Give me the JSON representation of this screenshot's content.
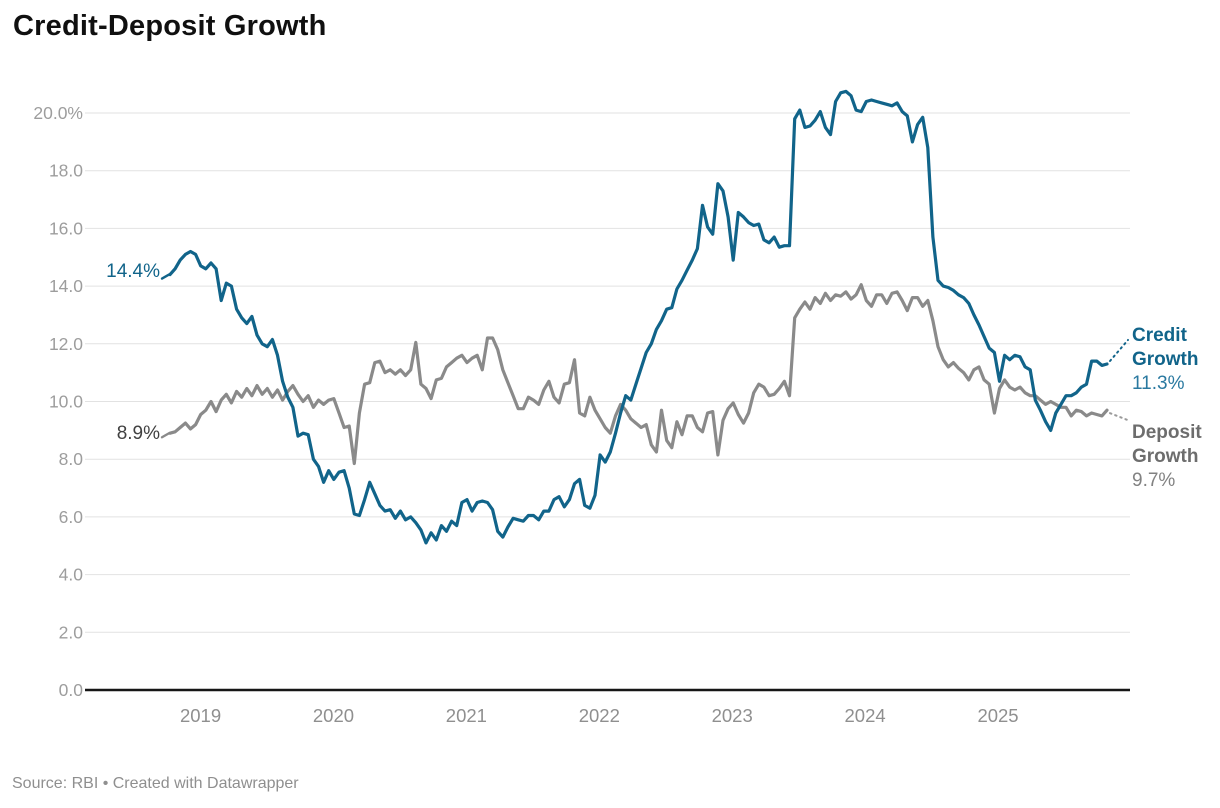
{
  "header": {
    "title": "Credit-Deposit Growth"
  },
  "footer": {
    "source_note": "Source: RBI • Created with Datawrapper"
  },
  "chart_data": {
    "type": "line",
    "title": "Credit-Deposit Growth",
    "xlabel": "",
    "ylabel": "",
    "grid": "horizontal",
    "legend_position": "line-end-labels",
    "x_axis": {
      "domain_start": 2018.77,
      "domain_end": 2025.82,
      "tick_labels": [
        "2019",
        "2020",
        "2021",
        "2022",
        "2023",
        "2024",
        "2025"
      ],
      "tick_values": [
        2019,
        2020,
        2021,
        2022,
        2023,
        2024,
        2025
      ]
    },
    "y_axis": {
      "min": 0,
      "max": 20,
      "tick_step": 2,
      "ticks": [
        {
          "v": 20,
          "label": "20.0%"
        },
        {
          "v": 18,
          "label": "18.0"
        },
        {
          "v": 16,
          "label": "16.0"
        },
        {
          "v": 14,
          "label": "14.0"
        },
        {
          "v": 12,
          "label": "12.0"
        },
        {
          "v": 10,
          "label": "10.0"
        },
        {
          "v": 8,
          "label": "8.0"
        },
        {
          "v": 6,
          "label": "6.0"
        },
        {
          "v": 4,
          "label": "4.0"
        },
        {
          "v": 2,
          "label": "2.0"
        },
        {
          "v": 0,
          "label": "0.0"
        }
      ]
    },
    "series": [
      {
        "name": "Credit Growth",
        "color": "#11648a",
        "start_label": "14.4%",
        "end_value_label": "11.3%",
        "frequency": "fortnightly",
        "values": [
          14.4,
          14.6,
          14.9,
          15.1,
          15.2,
          15.1,
          14.7,
          14.6,
          14.8,
          14.6,
          13.5,
          14.1,
          14.0,
          13.2,
          12.9,
          12.7,
          12.95,
          12.3,
          12.0,
          11.9,
          12.15,
          11.6,
          10.7,
          10.15,
          9.8,
          8.8,
          8.9,
          8.85,
          8.0,
          7.75,
          7.2,
          7.6,
          7.3,
          7.55,
          7.6,
          7.0,
          6.1,
          6.05,
          6.6,
          7.2,
          6.8,
          6.4,
          6.2,
          6.25,
          5.95,
          6.2,
          5.9,
          6.0,
          5.8,
          5.55,
          5.1,
          5.45,
          5.2,
          5.7,
          5.5,
          5.85,
          5.7,
          6.5,
          6.6,
          6.2,
          6.5,
          6.55,
          6.5,
          6.25,
          5.5,
          5.3,
          5.65,
          5.95,
          5.9,
          5.85,
          6.05,
          6.05,
          5.9,
          6.2,
          6.2,
          6.6,
          6.7,
          6.35,
          6.6,
          7.15,
          7.3,
          6.4,
          6.3,
          6.75,
          8.15,
          7.9,
          8.25,
          8.9,
          9.6,
          10.2,
          10.05,
          10.6,
          11.15,
          11.7,
          12.0,
          12.5,
          12.8,
          13.2,
          13.25,
          13.9,
          14.2,
          14.55,
          14.9,
          15.3,
          16.8,
          16.05,
          15.8,
          17.55,
          17.3,
          16.4,
          14.9,
          16.55,
          16.4,
          16.2,
          16.1,
          16.15,
          15.6,
          15.5,
          15.7,
          15.35,
          15.4,
          15.4,
          19.8,
          20.1,
          19.5,
          19.55,
          19.75,
          20.05,
          19.5,
          19.25,
          20.4,
          20.7,
          20.75,
          20.6,
          20.1,
          20.05,
          20.4,
          20.45,
          20.4,
          20.35,
          20.3,
          20.25,
          20.35,
          20.05,
          19.9,
          19.0,
          19.6,
          19.85,
          18.8,
          15.7,
          14.2,
          14.0,
          13.95,
          13.85,
          13.7,
          13.6,
          13.4,
          13.0,
          12.65,
          12.25,
          11.85,
          11.7,
          10.7,
          11.6,
          11.45,
          11.6,
          11.55,
          11.2,
          11.1,
          10.05,
          9.7,
          9.3,
          9.0,
          9.6,
          9.9,
          10.2,
          10.2,
          10.3,
          10.5,
          10.6,
          11.4,
          11.4,
          11.25,
          11.3
        ]
      },
      {
        "name": "Deposit Growth",
        "color": "#8a8a8a",
        "start_label": "8.9%",
        "end_value_label": "9.7%",
        "frequency": "fortnightly",
        "values": [
          8.9,
          8.95,
          9.1,
          9.25,
          9.05,
          9.2,
          9.55,
          9.7,
          10.0,
          9.65,
          10.05,
          10.25,
          9.95,
          10.35,
          10.15,
          10.45,
          10.2,
          10.55,
          10.25,
          10.45,
          10.15,
          10.4,
          10.05,
          10.35,
          10.55,
          10.25,
          10.0,
          10.2,
          9.8,
          10.05,
          9.9,
          10.05,
          10.1,
          9.6,
          9.1,
          9.15,
          7.85,
          9.6,
          10.6,
          10.65,
          11.35,
          11.4,
          11.0,
          11.1,
          10.95,
          11.1,
          10.9,
          11.1,
          12.05,
          10.6,
          10.45,
          10.1,
          10.75,
          10.8,
          11.2,
          11.35,
          11.5,
          11.6,
          11.35,
          11.5,
          11.6,
          11.1,
          12.2,
          12.2,
          11.8,
          11.1,
          10.65,
          10.2,
          9.75,
          9.75,
          10.15,
          10.05,
          9.9,
          10.4,
          10.7,
          10.15,
          9.95,
          10.6,
          10.65,
          11.45,
          9.6,
          9.5,
          10.15,
          9.7,
          9.4,
          9.1,
          8.9,
          9.5,
          9.9,
          9.7,
          9.4,
          9.25,
          9.1,
          9.2,
          8.5,
          8.25,
          9.7,
          8.65,
          8.4,
          9.3,
          8.85,
          9.5,
          9.5,
          9.1,
          8.95,
          9.6,
          9.65,
          8.15,
          9.35,
          9.75,
          9.95,
          9.55,
          9.25,
          9.6,
          10.3,
          10.6,
          10.5,
          10.2,
          10.25,
          10.45,
          10.7,
          10.2,
          12.9,
          13.2,
          13.45,
          13.2,
          13.6,
          13.4,
          13.75,
          13.5,
          13.7,
          13.65,
          13.8,
          13.55,
          13.7,
          14.05,
          13.5,
          13.3,
          13.7,
          13.7,
          13.4,
          13.75,
          13.8,
          13.5,
          13.15,
          13.6,
          13.6,
          13.3,
          13.5,
          12.8,
          11.9,
          11.45,
          11.2,
          11.35,
          11.15,
          11.0,
          10.75,
          11.1,
          11.2,
          10.75,
          10.6,
          9.6,
          10.45,
          10.75,
          10.5,
          10.4,
          10.5,
          10.3,
          10.2,
          10.2,
          10.05,
          9.9,
          10.0,
          9.9,
          9.8,
          9.8,
          9.5,
          9.7,
          9.65,
          9.5,
          9.6,
          9.55,
          9.5,
          9.7
        ]
      }
    ]
  }
}
